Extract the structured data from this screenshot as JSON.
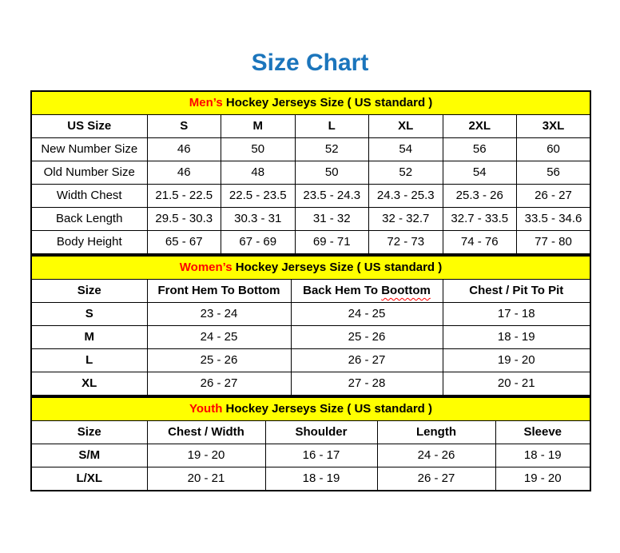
{
  "page_title": "Size Chart",
  "colors": {
    "title_blue": "#1B75BC",
    "section_yellow": "#FFFF00",
    "accent_red": "#FF0000",
    "border": "#000000"
  },
  "mens": {
    "title_accent": "Men’s",
    "title_rest": " Hockey Jerseys Size ( US standard )",
    "columns": [
      "US Size",
      "S",
      "M",
      "L",
      "XL",
      "2XL",
      "3XL"
    ],
    "rows": [
      {
        "label": "New Number Size",
        "values": [
          "46",
          "50",
          "52",
          "54",
          "56",
          "60"
        ]
      },
      {
        "label": "Old Number Size",
        "values": [
          "46",
          "48",
          "50",
          "52",
          "54",
          "56"
        ]
      },
      {
        "label": "Width Chest",
        "values": [
          "21.5 - 22.5",
          "22.5 - 23.5",
          "23.5 - 24.3",
          "24.3 - 25.3",
          "25.3 - 26",
          "26 - 27"
        ]
      },
      {
        "label": "Back Length",
        "values": [
          "29.5 - 30.3",
          "30.3 - 31",
          "31 - 32",
          "32 - 32.7",
          "32.7 - 33.5",
          "33.5 - 34.6"
        ]
      },
      {
        "label": "Body Height",
        "values": [
          "65 - 67",
          "67 - 69",
          "69 - 71",
          "72 - 73",
          "74 - 76",
          "77 - 80"
        ]
      }
    ]
  },
  "womens": {
    "title_accent": "Women’s",
    "title_rest": " Hockey Jerseys Size ( US standard )",
    "columns": {
      "c0": "Size",
      "c1": "Front Hem To Bottom",
      "c2_prefix": "Back Hem To ",
      "c2_misspelled": "Boottom",
      "c3": "Chest / Pit To Pit"
    },
    "rows": [
      {
        "label": "S",
        "values": [
          "23 - 24",
          "24 - 25",
          "17 - 18"
        ]
      },
      {
        "label": "M",
        "values": [
          "24 - 25",
          "25 - 26",
          "18 - 19"
        ]
      },
      {
        "label": "L",
        "values": [
          "25 - 26",
          "26 - 27",
          "19 - 20"
        ]
      },
      {
        "label": "XL",
        "values": [
          "26 - 27",
          "27 - 28",
          "20 - 21"
        ]
      }
    ]
  },
  "youth": {
    "title_accent": "Youth",
    "title_rest": " Hockey Jerseys Size ( US standard )",
    "columns": [
      "Size",
      "Chest / Width",
      "Shoulder",
      "Length",
      "Sleeve"
    ],
    "rows": [
      {
        "label": "S/M",
        "values": [
          "19 - 20",
          "16 - 17",
          "24 - 26",
          "18 - 19"
        ]
      },
      {
        "label": "L/XL",
        "values": [
          "20 - 21",
          "18 - 19",
          "26 - 27",
          "19 - 20"
        ]
      }
    ]
  }
}
